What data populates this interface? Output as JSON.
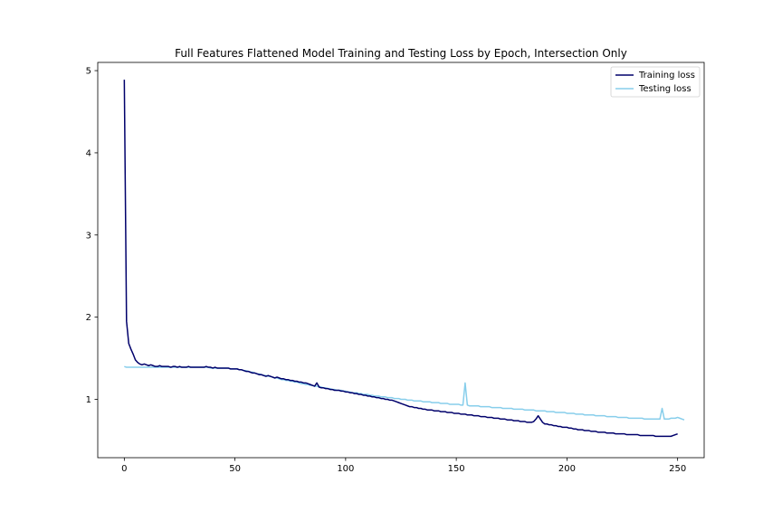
{
  "chart_data": {
    "type": "line",
    "title": "Full Features Flattened Model Training and Testing Loss by Epoch, Intersection Only",
    "xlabel": "",
    "ylabel": "",
    "xlim": [
      -12,
      262
    ],
    "ylim": [
      0.29,
      5.1
    ],
    "xticks": [
      0,
      50,
      100,
      150,
      200,
      250
    ],
    "yticks": [
      1,
      2,
      3,
      4,
      5
    ],
    "grid": false,
    "legend_position": "top-right",
    "x_start": 0,
    "x_step": 1,
    "series": [
      {
        "name": "Training loss",
        "color": "#00006b",
        "values": [
          4.89,
          1.95,
          1.68,
          1.61,
          1.55,
          1.48,
          1.45,
          1.43,
          1.42,
          1.43,
          1.42,
          1.41,
          1.42,
          1.41,
          1.4,
          1.4,
          1.41,
          1.4,
          1.4,
          1.4,
          1.4,
          1.39,
          1.4,
          1.4,
          1.39,
          1.4,
          1.39,
          1.39,
          1.39,
          1.4,
          1.39,
          1.39,
          1.39,
          1.39,
          1.39,
          1.39,
          1.39,
          1.4,
          1.39,
          1.39,
          1.38,
          1.39,
          1.38,
          1.38,
          1.38,
          1.38,
          1.38,
          1.38,
          1.37,
          1.37,
          1.37,
          1.37,
          1.36,
          1.36,
          1.35,
          1.34,
          1.34,
          1.33,
          1.32,
          1.32,
          1.31,
          1.3,
          1.3,
          1.29,
          1.28,
          1.29,
          1.28,
          1.27,
          1.26,
          1.27,
          1.26,
          1.25,
          1.25,
          1.24,
          1.24,
          1.23,
          1.23,
          1.22,
          1.22,
          1.21,
          1.21,
          1.2,
          1.2,
          1.19,
          1.18,
          1.17,
          1.16,
          1.2,
          1.15,
          1.14,
          1.14,
          1.13,
          1.13,
          1.12,
          1.12,
          1.11,
          1.11,
          1.11,
          1.1,
          1.1,
          1.09,
          1.09,
          1.08,
          1.08,
          1.07,
          1.07,
          1.06,
          1.06,
          1.05,
          1.05,
          1.04,
          1.04,
          1.03,
          1.03,
          1.02,
          1.02,
          1.01,
          1.01,
          1.0,
          1.0,
          0.99,
          0.99,
          0.98,
          0.97,
          0.96,
          0.95,
          0.94,
          0.93,
          0.92,
          0.91,
          0.91,
          0.9,
          0.9,
          0.89,
          0.89,
          0.88,
          0.88,
          0.87,
          0.87,
          0.87,
          0.86,
          0.86,
          0.86,
          0.85,
          0.85,
          0.85,
          0.84,
          0.84,
          0.84,
          0.83,
          0.83,
          0.83,
          0.82,
          0.82,
          0.82,
          0.81,
          0.81,
          0.81,
          0.8,
          0.8,
          0.8,
          0.79,
          0.79,
          0.79,
          0.78,
          0.78,
          0.78,
          0.77,
          0.77,
          0.77,
          0.76,
          0.76,
          0.76,
          0.75,
          0.75,
          0.75,
          0.74,
          0.74,
          0.74,
          0.73,
          0.73,
          0.73,
          0.72,
          0.72,
          0.72,
          0.73,
          0.76,
          0.8,
          0.76,
          0.72,
          0.7,
          0.7,
          0.69,
          0.69,
          0.68,
          0.68,
          0.67,
          0.67,
          0.66,
          0.66,
          0.66,
          0.65,
          0.65,
          0.64,
          0.64,
          0.63,
          0.63,
          0.63,
          0.62,
          0.62,
          0.62,
          0.61,
          0.61,
          0.61,
          0.6,
          0.6,
          0.6,
          0.6,
          0.59,
          0.59,
          0.59,
          0.59,
          0.58,
          0.58,
          0.58,
          0.58,
          0.58,
          0.57,
          0.57,
          0.57,
          0.57,
          0.57,
          0.57,
          0.56,
          0.56,
          0.56,
          0.56,
          0.56,
          0.56,
          0.56,
          0.55,
          0.55,
          0.55,
          0.55,
          0.55,
          0.55,
          0.55,
          0.55,
          0.56,
          0.57,
          0.58
        ]
      },
      {
        "name": "Testing loss",
        "color": "#87ceeb",
        "values": [
          1.4,
          1.39,
          1.39,
          1.39,
          1.39,
          1.39,
          1.39,
          1.39,
          1.39,
          1.39,
          1.39,
          1.39,
          1.39,
          1.39,
          1.39,
          1.39,
          1.39,
          1.39,
          1.39,
          1.39,
          1.39,
          1.39,
          1.39,
          1.39,
          1.39,
          1.39,
          1.39,
          1.39,
          1.39,
          1.39,
          1.39,
          1.39,
          1.39,
          1.39,
          1.39,
          1.39,
          1.39,
          1.39,
          1.39,
          1.38,
          1.38,
          1.38,
          1.38,
          1.38,
          1.38,
          1.38,
          1.38,
          1.38,
          1.37,
          1.37,
          1.37,
          1.37,
          1.36,
          1.36,
          1.35,
          1.35,
          1.34,
          1.33,
          1.33,
          1.32,
          1.31,
          1.31,
          1.3,
          1.29,
          1.29,
          1.28,
          1.28,
          1.27,
          1.26,
          1.26,
          1.25,
          1.24,
          1.24,
          1.23,
          1.23,
          1.22,
          1.22,
          1.21,
          1.21,
          1.2,
          1.19,
          1.19,
          1.18,
          1.18,
          1.17,
          1.17,
          1.16,
          1.16,
          1.15,
          1.15,
          1.14,
          1.14,
          1.13,
          1.13,
          1.12,
          1.12,
          1.11,
          1.11,
          1.11,
          1.1,
          1.1,
          1.09,
          1.09,
          1.08,
          1.08,
          1.08,
          1.07,
          1.07,
          1.06,
          1.06,
          1.06,
          1.05,
          1.05,
          1.04,
          1.04,
          1.04,
          1.03,
          1.03,
          1.03,
          1.02,
          1.02,
          1.02,
          1.01,
          1.01,
          1.01,
          1.0,
          1.0,
          1.0,
          0.99,
          0.99,
          0.99,
          0.98,
          0.98,
          0.98,
          0.98,
          0.97,
          0.97,
          0.97,
          0.97,
          0.96,
          0.96,
          0.96,
          0.96,
          0.95,
          0.95,
          0.95,
          0.95,
          0.94,
          0.94,
          0.94,
          0.94,
          0.94,
          0.93,
          0.93,
          1.2,
          0.93,
          0.92,
          0.92,
          0.92,
          0.92,
          0.92,
          0.91,
          0.91,
          0.91,
          0.91,
          0.91,
          0.9,
          0.9,
          0.9,
          0.9,
          0.9,
          0.89,
          0.89,
          0.89,
          0.89,
          0.89,
          0.88,
          0.88,
          0.88,
          0.88,
          0.88,
          0.87,
          0.87,
          0.87,
          0.87,
          0.87,
          0.86,
          0.86,
          0.86,
          0.86,
          0.86,
          0.85,
          0.85,
          0.85,
          0.85,
          0.84,
          0.84,
          0.84,
          0.84,
          0.84,
          0.83,
          0.83,
          0.83,
          0.83,
          0.82,
          0.82,
          0.82,
          0.82,
          0.81,
          0.81,
          0.81,
          0.81,
          0.81,
          0.8,
          0.8,
          0.8,
          0.8,
          0.8,
          0.79,
          0.79,
          0.79,
          0.79,
          0.79,
          0.78,
          0.78,
          0.78,
          0.78,
          0.78,
          0.77,
          0.77,
          0.77,
          0.77,
          0.77,
          0.77,
          0.77,
          0.76,
          0.76,
          0.76,
          0.76,
          0.76,
          0.76,
          0.76,
          0.76,
          0.89,
          0.76,
          0.76,
          0.76,
          0.77,
          0.77,
          0.77,
          0.78,
          0.77,
          0.76,
          0.75
        ]
      }
    ]
  }
}
